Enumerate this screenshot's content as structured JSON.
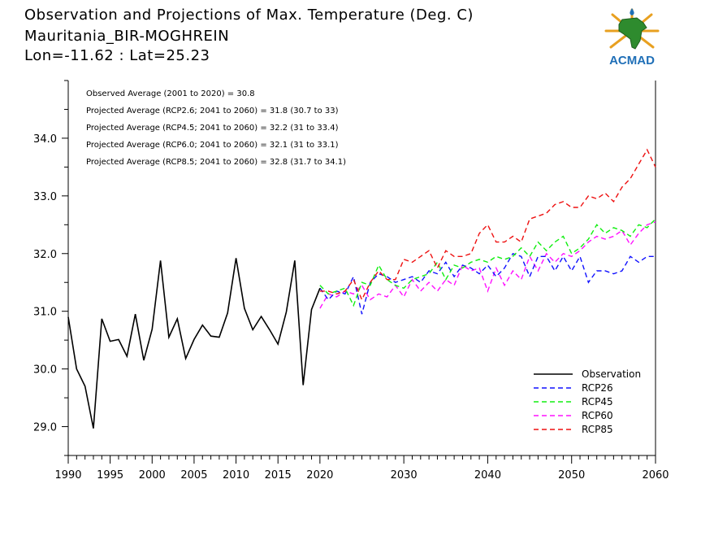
{
  "header": {
    "title_line1": "Observation and Projections of Max. Temperature (Deg. C)",
    "title_line2": "Mauritania_BIR-MOGHREIN",
    "title_line3": "Lon=-11.62 : Lat=25.23"
  },
  "logo": {
    "text": "ACMAD",
    "icon": "africa-map-logo-icon"
  },
  "colors": {
    "Observation": "#000000",
    "RCP26": "#1010ff",
    "RCP45": "#10ee10",
    "RCP60": "#ff10ff",
    "RCP85": "#ee1010"
  },
  "chart_data": {
    "type": "line",
    "title": "Observation and Projections of Max. Temperature (Deg. C)",
    "xlabel": "",
    "ylabel": "",
    "xlim": [
      1990,
      2060
    ],
    "ylim": [
      28.5,
      35.0
    ],
    "x_ticks": [
      1990,
      1995,
      2000,
      2005,
      2010,
      2015,
      2020,
      2030,
      2040,
      2050,
      2060
    ],
    "y_ticks": [
      29.0,
      30.0,
      31.0,
      32.0,
      33.0,
      34.0
    ],
    "y_tick_labels": [
      "29.0",
      "30.0",
      "31.0",
      "32.0",
      "33.0",
      "34.0"
    ],
    "grid": false,
    "legend_position": "bottom-right",
    "annotations": [
      "Observed Average (2001 to 2020) = 30.8",
      "Projected Average (RCP2.6; 2041 to 2060) = 31.8 (30.7 to 33)",
      "Projected Average (RCP4.5; 2041 to 2060) = 32.2 (31 to 33.4)",
      "Projected Average (RCP6.0; 2041 to 2060) = 32.1 (31 to 33.1)",
      "Projected Average (RCP8.5; 2041 to 2060) = 32.8 (31.7 to 34.1)"
    ],
    "series": [
      {
        "name": "Observation",
        "style": "solid",
        "x": [
          1990,
          1991,
          1992,
          1993,
          1994,
          1995,
          1996,
          1997,
          1998,
          1999,
          2000,
          2001,
          2002,
          2003,
          2004,
          2005,
          2006,
          2007,
          2008,
          2009,
          2010,
          2011,
          2012,
          2013,
          2014,
          2015,
          2016,
          2017,
          2018,
          2019,
          2020
        ],
        "y": [
          30.9,
          30.0,
          29.7,
          28.97,
          30.87,
          30.48,
          30.51,
          30.22,
          30.95,
          30.15,
          30.69,
          31.88,
          30.55,
          30.87,
          30.18,
          30.51,
          30.76,
          30.57,
          30.55,
          30.97,
          31.92,
          31.05,
          30.68,
          30.91,
          30.68,
          30.43,
          30.99,
          31.88,
          29.72,
          31.03,
          31.4
        ]
      },
      {
        "name": "RCP26",
        "style": "dashed",
        "x": [
          2020,
          2021,
          2022,
          2023,
          2024,
          2025,
          2026,
          2027,
          2028,
          2029,
          2030,
          2031,
          2032,
          2033,
          2034,
          2035,
          2036,
          2037,
          2038,
          2039,
          2040,
          2041,
          2042,
          2043,
          2044,
          2045,
          2046,
          2047,
          2048,
          2049,
          2050,
          2051,
          2052,
          2053,
          2054,
          2055,
          2056,
          2057,
          2058,
          2059,
          2060
        ],
        "y": [
          31.4,
          31.2,
          31.35,
          31.3,
          31.6,
          30.95,
          31.5,
          31.65,
          31.6,
          31.5,
          31.55,
          31.6,
          31.5,
          31.7,
          31.65,
          31.85,
          31.6,
          31.8,
          31.75,
          31.65,
          31.8,
          31.6,
          31.75,
          32.0,
          31.95,
          31.6,
          31.95,
          31.95,
          31.7,
          31.95,
          31.7,
          31.95,
          31.5,
          31.7,
          31.7,
          31.65,
          31.7,
          31.95,
          31.85,
          31.95,
          31.95
        ]
      },
      {
        "name": "RCP45",
        "style": "dashed",
        "x": [
          2020,
          2021,
          2022,
          2023,
          2024,
          2025,
          2026,
          2027,
          2028,
          2029,
          2030,
          2031,
          2032,
          2033,
          2034,
          2035,
          2036,
          2037,
          2038,
          2039,
          2040,
          2041,
          2042,
          2043,
          2044,
          2045,
          2046,
          2047,
          2048,
          2049,
          2050,
          2051,
          2052,
          2053,
          2054,
          2055,
          2056,
          2057,
          2058,
          2059,
          2060
        ],
        "y": [
          31.45,
          31.3,
          31.35,
          31.4,
          31.1,
          31.5,
          31.45,
          31.8,
          31.55,
          31.45,
          31.4,
          31.55,
          31.6,
          31.65,
          31.85,
          31.55,
          31.8,
          31.75,
          31.85,
          31.9,
          31.85,
          31.95,
          31.9,
          31.95,
          32.1,
          31.95,
          32.2,
          32.05,
          32.2,
          32.3,
          32.0,
          32.1,
          32.25,
          32.5,
          32.35,
          32.45,
          32.4,
          32.3,
          32.5,
          32.45,
          32.6
        ]
      },
      {
        "name": "RCP60",
        "style": "dashed",
        "x": [
          2020,
          2021,
          2022,
          2023,
          2024,
          2025,
          2026,
          2027,
          2028,
          2029,
          2030,
          2031,
          2032,
          2033,
          2034,
          2035,
          2036,
          2037,
          2038,
          2039,
          2040,
          2041,
          2042,
          2043,
          2044,
          2045,
          2046,
          2047,
          2048,
          2049,
          2050,
          2051,
          2052,
          2053,
          2054,
          2055,
          2056,
          2057,
          2058,
          2059,
          2060
        ],
        "y": [
          31.05,
          31.3,
          31.25,
          31.35,
          31.3,
          31.45,
          31.2,
          31.3,
          31.25,
          31.45,
          31.25,
          31.55,
          31.35,
          31.5,
          31.35,
          31.55,
          31.45,
          31.8,
          31.7,
          31.75,
          31.35,
          31.75,
          31.45,
          31.7,
          31.55,
          31.95,
          31.7,
          32.0,
          31.85,
          32.0,
          31.95,
          32.05,
          32.2,
          32.3,
          32.25,
          32.3,
          32.4,
          32.15,
          32.35,
          32.5,
          32.55
        ]
      },
      {
        "name": "RCP85",
        "style": "dashed",
        "x": [
          2020,
          2021,
          2022,
          2023,
          2024,
          2025,
          2026,
          2027,
          2028,
          2029,
          2030,
          2031,
          2032,
          2033,
          2034,
          2035,
          2036,
          2037,
          2038,
          2039,
          2040,
          2041,
          2042,
          2043,
          2044,
          2045,
          2046,
          2047,
          2048,
          2049,
          2050,
          2051,
          2052,
          2053,
          2054,
          2055,
          2056,
          2057,
          2058,
          2059,
          2060
        ],
        "y": [
          31.35,
          31.35,
          31.3,
          31.35,
          31.55,
          31.2,
          31.5,
          31.7,
          31.55,
          31.55,
          31.9,
          31.85,
          31.95,
          32.05,
          31.75,
          32.05,
          31.95,
          31.95,
          32.0,
          32.35,
          32.5,
          32.2,
          32.2,
          32.3,
          32.2,
          32.6,
          32.65,
          32.7,
          32.85,
          32.9,
          32.8,
          32.8,
          33.0,
          32.95,
          33.05,
          32.9,
          33.15,
          33.3,
          33.55,
          33.8,
          33.5
        ]
      }
    ]
  }
}
